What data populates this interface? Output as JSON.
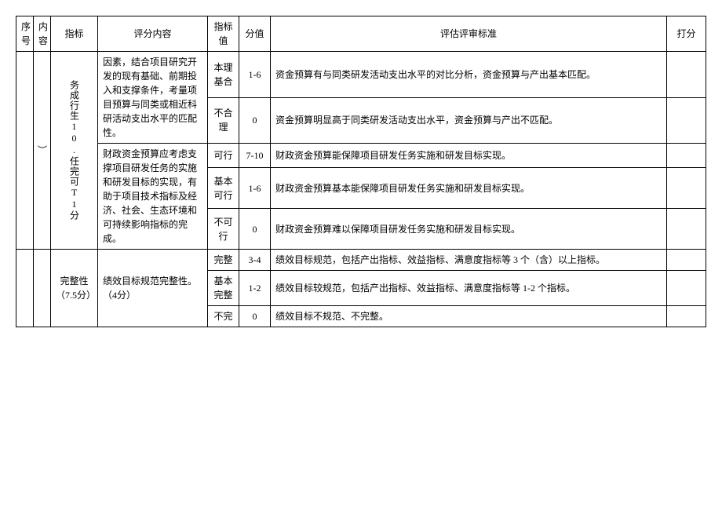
{
  "headers": {
    "seq": "序号",
    "content": "内容",
    "indicator": "指标",
    "scoring_content": "评分内容",
    "indicator_value": "指标值",
    "score": "分值",
    "standard": "评估评审标准",
    "grade": "打分"
  },
  "section1": {
    "content_paren": "）",
    "indicator_vert": "务成行生10.任完可T1分",
    "scoring1": "因素，结合项目研究开发的现有基础、前期投入和支撑条件，考量项目预算与同类或相近科研活动支出水平的匹配性。",
    "value1_label": "本理基合",
    "value1_score": "1-6",
    "value1_standard": "资金预算有与同类研发活动支出水平的对比分析，资金预算与产出基本匹配。",
    "value2_label": "不合理",
    "value2_score": "0",
    "value2_standard": "资金预算明显高于同类研发活动支出水平，资金预算与产出不匹配。",
    "scoring2": "财政资金预算应考虑支撑项目研发任务的实施和研发目标的实现，有助于项目技术指标及经济、社会、生态环境和可持续影响指标的完成。",
    "value3_label": "可行",
    "value3_score": "7-10",
    "value3_standard": "财政资金预算能保障项目研发任务实施和研发目标实现。",
    "value4_label": "基本可行",
    "value4_score": "1-6",
    "value4_standard": "财政资金预算基本能保障项目研发任务实施和研发目标实现。",
    "value5_label": "不可行",
    "value5_score": "0",
    "value5_standard": "财政资金预算难以保障项目研发任务实施和研发目标实现。"
  },
  "section2": {
    "indicator": "完整性（7.5分）",
    "scoring": "绩效目标规范完整性。（4分）",
    "value1_label": "完整",
    "value1_score": "3-4",
    "value1_standard": "绩效目标规范，包括产出指标、效益指标、满意度指标等 3 个（含）以上指标。",
    "value2_label": "基本完整",
    "value2_score": "1-2",
    "value2_standard": "绩效目标较规范，包括产出指标、效益指标、满意度指标等 1-2 个指标。",
    "value3_label": "不完",
    "value3_score": "0",
    "value3_standard": "绩效目标不规范、不完整。"
  }
}
